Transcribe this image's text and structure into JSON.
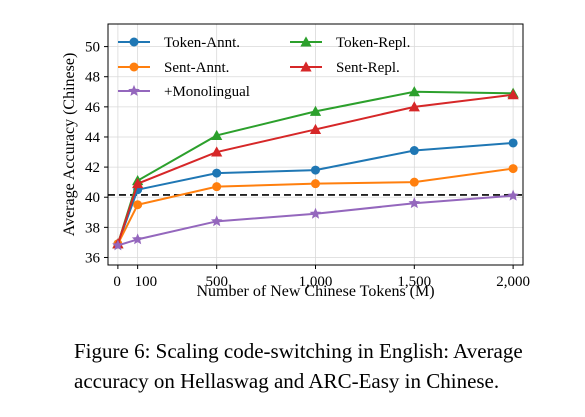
{
  "chart_data": {
    "type": "line",
    "xlabel": "Number of New Chinese Tokens (M)",
    "ylabel": "Average Accuracy (Chinese)",
    "xlim": [
      -50,
      2050
    ],
    "ylim": [
      35.5,
      51.5
    ],
    "x_ticks": [
      0,
      100,
      500,
      1000,
      1500,
      2000
    ],
    "x_tick_labels": [
      "0",
      "100",
      "500",
      "1,000",
      "1,500",
      "2,000"
    ],
    "y_ticks": [
      36,
      38,
      40,
      42,
      44,
      46,
      48,
      50
    ],
    "grid": true,
    "legend_placement": "top-left",
    "baseline": {
      "y": 40.15,
      "style": "dashed",
      "color": "#000000"
    },
    "series": [
      {
        "name": "Token-Annt.",
        "color": "#1f77b4",
        "marker": "circle",
        "x": [
          0,
          100,
          500,
          1000,
          1500,
          2000
        ],
        "y": [
          36.9,
          40.5,
          41.6,
          41.8,
          43.1,
          43.6
        ]
      },
      {
        "name": "Token-Repl.",
        "color": "#2ca02c",
        "marker": "triangle",
        "x": [
          0,
          100,
          500,
          1000,
          1500,
          2000
        ],
        "y": [
          36.9,
          41.1,
          44.1,
          45.7,
          47.0,
          46.9
        ]
      },
      {
        "name": "Sent-Annt.",
        "color": "#ff7f0e",
        "marker": "circle",
        "x": [
          0,
          100,
          500,
          1000,
          1500,
          2000
        ],
        "y": [
          36.9,
          39.5,
          40.7,
          40.9,
          41.0,
          41.9
        ]
      },
      {
        "name": "Sent-Repl.",
        "color": "#d62728",
        "marker": "triangle",
        "x": [
          0,
          100,
          500,
          1000,
          1500,
          2000
        ],
        "y": [
          36.9,
          40.9,
          43.0,
          44.5,
          46.0,
          46.8
        ]
      },
      {
        "name": "+Monolingual",
        "color": "#9467bd",
        "marker": "star",
        "x": [
          0,
          100,
          500,
          1000,
          1500,
          2000
        ],
        "y": [
          36.8,
          37.2,
          38.4,
          38.9,
          39.6,
          40.1
        ]
      }
    ]
  },
  "caption": {
    "line1": "Figure 6: Scaling code-switching in English: Average",
    "line2": "accuracy on Hellaswag and ARC-Easy in Chinese."
  }
}
